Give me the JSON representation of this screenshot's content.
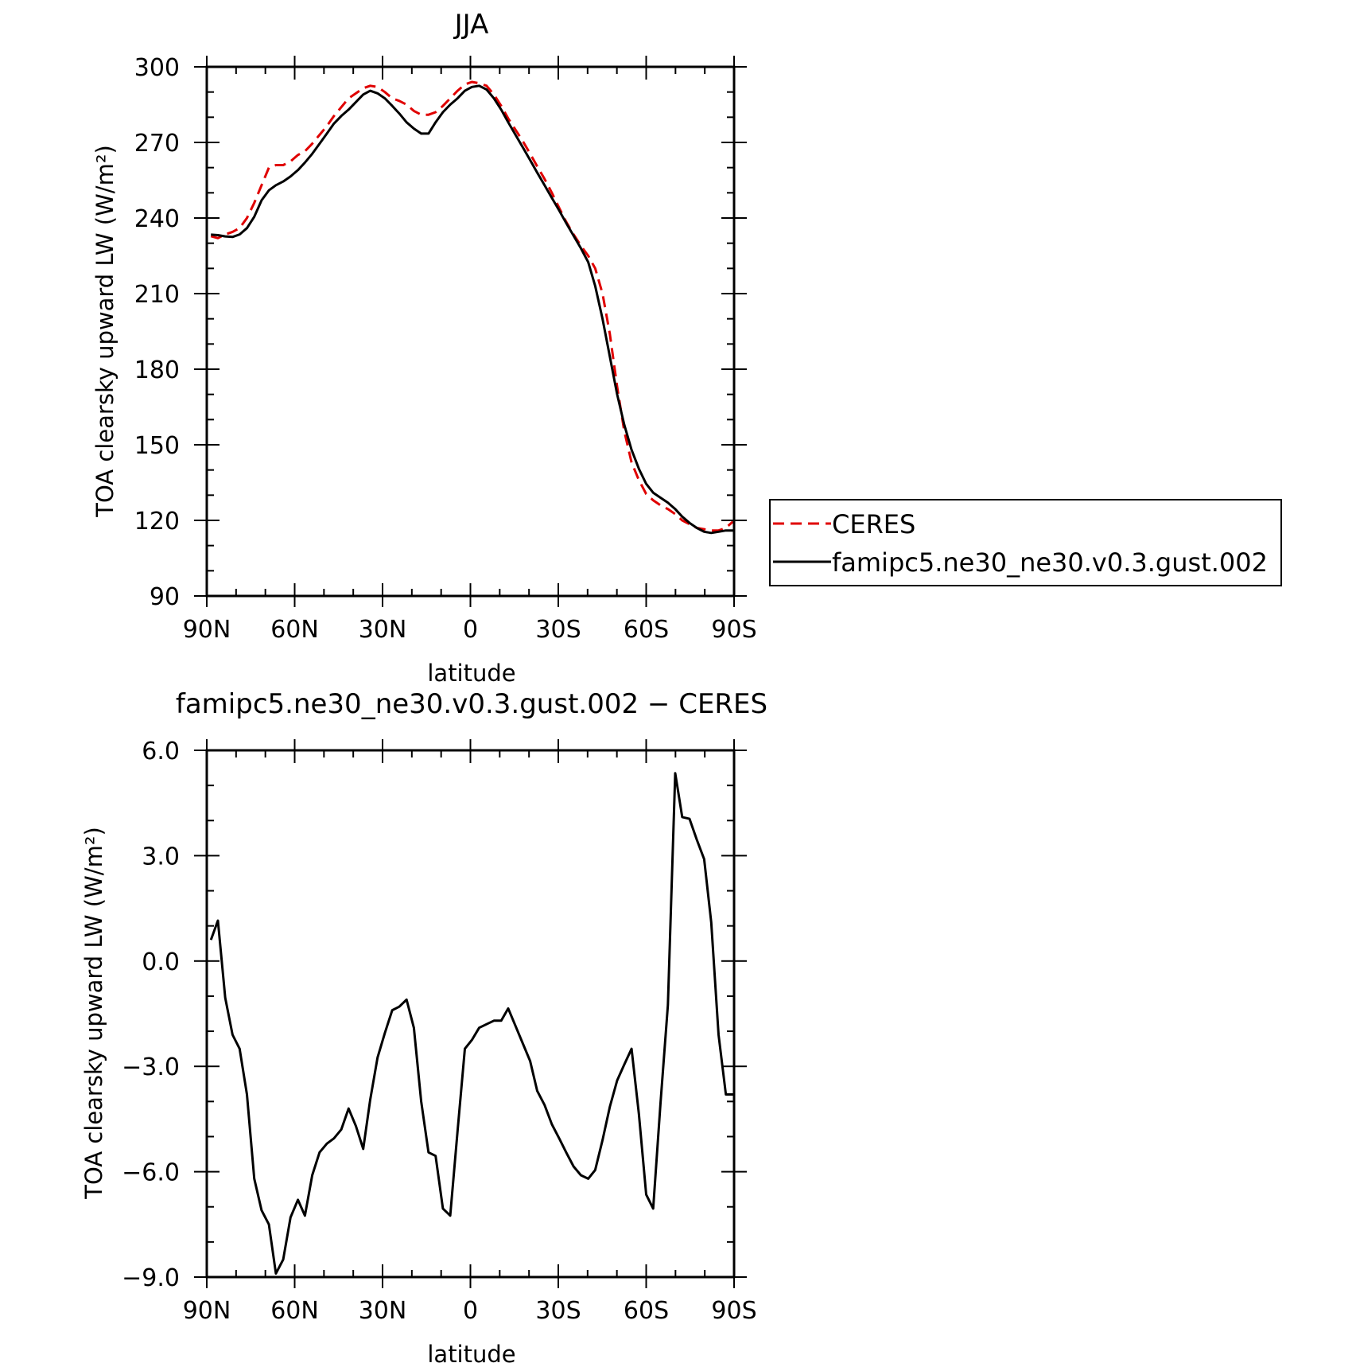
{
  "chart_data": [
    {
      "type": "line",
      "title": "JJA",
      "xlabel": "latitude",
      "ylabel": "TOA clearsky upward LW (W/m²)",
      "xlim": [
        90,
        -90
      ],
      "ylim": [
        90,
        300
      ],
      "xticks": [
        90,
        60,
        30,
        0,
        -30,
        -60,
        -90
      ],
      "xtick_labels": [
        "90N",
        "60N",
        "30N",
        "0",
        "30S",
        "60S",
        "90S"
      ],
      "yticks": [
        90,
        120,
        150,
        180,
        210,
        240,
        270,
        300
      ],
      "ytick_labels": [
        "90",
        "120",
        "150",
        "180",
        "210",
        "240",
        "270",
        "300"
      ],
      "grid": false,
      "legend": {
        "placement": "right, outside plot",
        "entries": [
          "CERES",
          "famipc5.ne30_ne30.v0.3.gust.002"
        ]
      },
      "series": [
        {
          "name": "CERES",
          "color": "#e00000",
          "style": "dashed",
          "x": [
            88.6,
            86.2,
            83.7,
            81.2,
            78.8,
            76.3,
            73.8,
            71.3,
            68.8,
            66.4,
            63.9,
            61.4,
            58.9,
            56.5,
            54.0,
            51.5,
            49.0,
            46.6,
            44.1,
            41.6,
            39.1,
            36.6,
            34.2,
            31.7,
            29.2,
            26.7,
            24.3,
            21.8,
            19.3,
            16.8,
            14.3,
            11.9,
            9.4,
            6.9,
            4.4,
            1.9,
            -0.5,
            -3.0,
            -5.5,
            -8.0,
            -10.5,
            -12.9,
            -15.4,
            -17.9,
            -20.4,
            -22.8,
            -25.3,
            -27.8,
            -30.3,
            -32.7,
            -35.2,
            -37.7,
            -40.2,
            -42.6,
            -45.1,
            -47.6,
            -50.1,
            -52.5,
            -55.0,
            -57.5,
            -60.0,
            -62.4,
            -64.9,
            -67.4,
            -69.9,
            -72.3,
            -74.8,
            -77.3,
            -79.8,
            -82.2,
            -84.7,
            -87.2,
            -89.6
          ],
          "y": [
            232.8,
            232.0,
            233.5,
            234.5,
            236.0,
            240.0,
            246.0,
            253.0,
            260.0,
            261.0,
            261.0,
            262.5,
            265.0,
            266.5,
            269.5,
            273.0,
            276.5,
            280.5,
            284.0,
            287.5,
            289.5,
            291.5,
            292.5,
            292.0,
            290.0,
            287.5,
            286.5,
            285.0,
            282.5,
            281.0,
            281.0,
            282.0,
            284.5,
            287.5,
            290.5,
            293.0,
            294.0,
            293.5,
            292.5,
            289.0,
            284.5,
            279.5,
            275.0,
            270.5,
            265.5,
            260.5,
            255.5,
            250.0,
            244.0,
            238.5,
            233.5,
            229.0,
            225.0,
            220.0,
            210.0,
            194.0,
            173.0,
            155.5,
            143.0,
            136.0,
            130.5,
            128.0,
            126.0,
            124.5,
            122.5,
            120.0,
            118.5,
            117.0,
            116.5,
            116.0,
            116.0,
            117.0,
            119.5
          ]
        },
        {
          "name": "famipc5.ne30_ne30.v0.3.gust.002",
          "color": "#000000",
          "style": "solid",
          "x": [
            88.6,
            86.2,
            83.7,
            81.2,
            78.8,
            76.3,
            73.8,
            71.3,
            68.8,
            66.4,
            63.9,
            61.4,
            58.9,
            56.5,
            54.0,
            51.5,
            49.0,
            46.6,
            44.1,
            41.6,
            39.1,
            36.6,
            34.2,
            31.7,
            29.2,
            26.7,
            24.3,
            21.8,
            19.3,
            16.8,
            14.3,
            11.9,
            9.4,
            6.9,
            4.4,
            1.9,
            -0.5,
            -3.0,
            -5.5,
            -8.0,
            -10.5,
            -12.9,
            -15.4,
            -17.9,
            -20.4,
            -22.8,
            -25.3,
            -27.8,
            -30.3,
            -32.7,
            -35.2,
            -37.7,
            -40.2,
            -42.6,
            -45.1,
            -47.6,
            -50.1,
            -52.5,
            -55.0,
            -57.5,
            -60.0,
            -62.4,
            -64.9,
            -67.4,
            -69.9,
            -72.3,
            -74.8,
            -77.3,
            -79.8,
            -82.2,
            -84.7,
            -87.2,
            -89.6
          ],
          "y": [
            233.4,
            233.2,
            232.7,
            232.5,
            233.5,
            236.0,
            240.5,
            247.0,
            251.0,
            253.0,
            254.5,
            256.5,
            259.0,
            262.0,
            265.5,
            269.5,
            273.5,
            277.5,
            280.5,
            283.0,
            286.0,
            289.0,
            290.5,
            289.5,
            287.5,
            284.5,
            281.5,
            278.0,
            275.5,
            273.5,
            273.5,
            278.0,
            282.0,
            285.0,
            287.5,
            290.5,
            292.0,
            292.5,
            291.0,
            287.5,
            283.0,
            278.0,
            273.0,
            268.0,
            263.0,
            258.0,
            253.0,
            248.0,
            243.0,
            238.0,
            233.0,
            228.0,
            222.5,
            213.0,
            200.0,
            185.0,
            170.0,
            158.0,
            148.0,
            140.5,
            134.5,
            131.0,
            129.0,
            127.0,
            124.5,
            121.5,
            119.0,
            117.0,
            115.5,
            115.0,
            115.5,
            116.0,
            116.0
          ]
        }
      ]
    },
    {
      "type": "line",
      "title": "famipc5.ne30_ne30.v0.3.gust.002 − CERES",
      "xlabel": "latitude",
      "ylabel": "TOA clearsky upward LW (W/m²)",
      "xlim": [
        90,
        -90
      ],
      "ylim": [
        -9.0,
        6.0
      ],
      "xticks": [
        90,
        60,
        30,
        0,
        -30,
        -60,
        -90
      ],
      "xtick_labels": [
        "90N",
        "60N",
        "30N",
        "0",
        "30S",
        "60S",
        "90S"
      ],
      "yticks": [
        -9.0,
        -6.0,
        -3.0,
        0.0,
        3.0,
        6.0
      ],
      "ytick_labels": [
        "−9.0",
        "−6.0",
        "−3.0",
        "0.0",
        "3.0",
        "6.0"
      ],
      "grid": false,
      "series": [
        {
          "color": "#000000",
          "style": "solid",
          "x": [
            88.6,
            86.2,
            83.7,
            81.2,
            78.8,
            76.3,
            73.8,
            71.3,
            68.8,
            66.4,
            63.9,
            61.4,
            58.9,
            56.5,
            54.0,
            51.5,
            49.0,
            46.6,
            44.1,
            41.6,
            39.1,
            36.6,
            34.2,
            31.7,
            29.2,
            26.7,
            24.3,
            21.8,
            19.3,
            16.8,
            14.3,
            11.9,
            9.4,
            6.9,
            4.4,
            1.9,
            -0.5,
            -3.0,
            -5.5,
            -8.0,
            -10.5,
            -12.9,
            -15.4,
            -17.9,
            -20.4,
            -22.8,
            -25.3,
            -27.8,
            -30.3,
            -32.7,
            -35.2,
            -37.7,
            -40.2,
            -42.6,
            -45.1,
            -47.6,
            -50.1,
            -52.5,
            -55.0,
            -57.5,
            -60.0,
            -62.4,
            -64.9,
            -67.4,
            -69.9,
            -72.3,
            -74.8,
            -77.3,
            -79.8,
            -82.2,
            -84.7,
            -87.2,
            -89.6
          ],
          "y": [
            0.6,
            1.15,
            -1.05,
            -2.1,
            -2.5,
            -3.8,
            -6.2,
            -7.1,
            -7.5,
            -8.9,
            -8.5,
            -7.3,
            -6.8,
            -7.25,
            -6.1,
            -5.45,
            -5.2,
            -5.05,
            -4.8,
            -4.2,
            -4.7,
            -5.35,
            -3.95,
            -2.75,
            -2.05,
            -1.4,
            -1.3,
            -1.1,
            -1.9,
            -4.0,
            -5.45,
            -5.55,
            -7.05,
            -7.25,
            -4.85,
            -2.5,
            -2.25,
            -1.9,
            -1.8,
            -1.7,
            -1.7,
            -1.35,
            -1.85,
            -2.35,
            -2.85,
            -3.7,
            -4.1,
            -4.65,
            -5.05,
            -5.45,
            -5.85,
            -6.1,
            -6.2,
            -5.95,
            -5.1,
            -4.15,
            -3.4,
            -2.95,
            -2.5,
            -4.35,
            -6.65,
            -7.05,
            -4.05,
            -1.25,
            5.35,
            4.1,
            4.05,
            3.45,
            2.9,
            1.1,
            -2.1,
            -3.8,
            -3.8
          ]
        }
      ]
    }
  ]
}
